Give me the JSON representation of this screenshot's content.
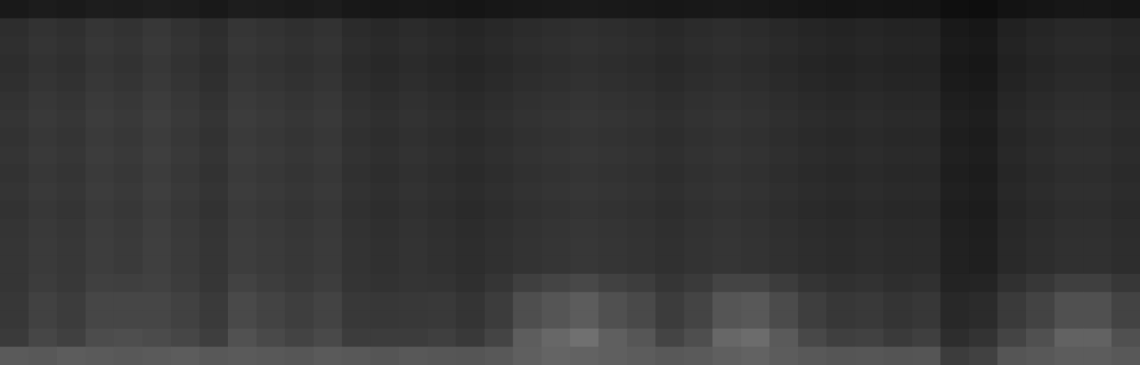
{
  "chart_data": {
    "type": "heatmap",
    "tick_labels": false,
    "grid": false,
    "value_range": [
      0,
      255
    ],
    "cells": [
      [
        25,
        28,
        26,
        29,
        28,
        30,
        28,
        25,
        29,
        28,
        26,
        28,
        24,
        23,
        24,
        23,
        21,
        23,
        24,
        25,
        26,
        25,
        24,
        23,
        24,
        25,
        24,
        23,
        21,
        20,
        21,
        20,
        20,
        15,
        14,
        19,
        21,
        23,
        23,
        21
      ],
      [
        45,
        50,
        47,
        53,
        50,
        55,
        50,
        45,
        53,
        50,
        47,
        50,
        43,
        40,
        43,
        40,
        37,
        40,
        43,
        45,
        47,
        45,
        43,
        40,
        43,
        45,
        43,
        40,
        37,
        35,
        37,
        35,
        35,
        25,
        23,
        33,
        37,
        40,
        40,
        37
      ],
      [
        47,
        52,
        49,
        55,
        52,
        57,
        52,
        47,
        55,
        52,
        49,
        52,
        45,
        42,
        45,
        42,
        39,
        42,
        45,
        47,
        49,
        47,
        45,
        42,
        45,
        47,
        45,
        42,
        39,
        37,
        39,
        37,
        37,
        27,
        25,
        35,
        39,
        42,
        42,
        39
      ],
      [
        45,
        50,
        47,
        53,
        50,
        55,
        50,
        45,
        53,
        50,
        47,
        50,
        43,
        40,
        43,
        40,
        37,
        40,
        43,
        45,
        47,
        45,
        43,
        40,
        43,
        45,
        43,
        40,
        37,
        35,
        37,
        35,
        35,
        25,
        23,
        33,
        37,
        40,
        40,
        37
      ],
      [
        47,
        52,
        49,
        55,
        52,
        57,
        52,
        47,
        55,
        52,
        49,
        52,
        45,
        42,
        45,
        42,
        39,
        42,
        45,
        47,
        49,
        47,
        45,
        42,
        45,
        47,
        45,
        42,
        39,
        37,
        39,
        37,
        37,
        27,
        25,
        35,
        39,
        42,
        42,
        39
      ],
      [
        50,
        55,
        52,
        58,
        55,
        60,
        55,
        50,
        58,
        55,
        52,
        55,
        48,
        45,
        48,
        45,
        42,
        45,
        48,
        50,
        52,
        50,
        48,
        45,
        48,
        50,
        48,
        45,
        42,
        40,
        42,
        40,
        40,
        30,
        28,
        38,
        42,
        45,
        45,
        42
      ],
      [
        52,
        57,
        54,
        60,
        57,
        62,
        57,
        52,
        60,
        57,
        54,
        57,
        50,
        47,
        50,
        47,
        44,
        47,
        50,
        52,
        54,
        52,
        50,
        47,
        50,
        52,
        50,
        47,
        44,
        42,
        44,
        42,
        42,
        32,
        30,
        40,
        44,
        47,
        47,
        44
      ],
      [
        50,
        55,
        52,
        58,
        55,
        60,
        55,
        50,
        58,
        55,
        52,
        55,
        48,
        45,
        48,
        45,
        42,
        45,
        48,
        50,
        52,
        50,
        48,
        45,
        48,
        50,
        48,
        45,
        42,
        40,
        42,
        40,
        40,
        30,
        28,
        38,
        42,
        45,
        45,
        42
      ],
      [
        52,
        57,
        54,
        60,
        57,
        62,
        57,
        52,
        60,
        57,
        54,
        57,
        50,
        47,
        50,
        47,
        44,
        47,
        50,
        52,
        54,
        52,
        50,
        47,
        50,
        52,
        50,
        47,
        44,
        42,
        44,
        42,
        42,
        32,
        30,
        40,
        44,
        47,
        47,
        44
      ],
      [
        50,
        55,
        52,
        58,
        55,
        60,
        55,
        50,
        58,
        55,
        52,
        55,
        48,
        45,
        48,
        45,
        42,
        45,
        48,
        50,
        52,
        50,
        48,
        45,
        48,
        50,
        48,
        45,
        42,
        40,
        42,
        40,
        40,
        30,
        28,
        38,
        42,
        45,
        45,
        42
      ],
      [
        52,
        57,
        54,
        60,
        57,
        62,
        57,
        52,
        60,
        57,
        54,
        57,
        50,
        47,
        50,
        47,
        44,
        47,
        50,
        52,
        54,
        52,
        50,
        47,
        50,
        52,
        50,
        47,
        44,
        42,
        44,
        42,
        42,
        32,
        30,
        40,
        44,
        47,
        47,
        44
      ],
      [
        50,
        55,
        52,
        58,
        55,
        60,
        55,
        50,
        58,
        55,
        52,
        55,
        48,
        45,
        48,
        45,
        42,
        45,
        48,
        50,
        52,
        50,
        48,
        45,
        48,
        50,
        48,
        45,
        42,
        40,
        42,
        40,
        40,
        30,
        28,
        38,
        42,
        45,
        45,
        42
      ],
      [
        52,
        57,
        54,
        60,
        57,
        62,
        57,
        52,
        60,
        57,
        54,
        57,
        50,
        47,
        50,
        47,
        44,
        47,
        50,
        52,
        54,
        52,
        50,
        47,
        50,
        52,
        50,
        47,
        44,
        42,
        44,
        42,
        42,
        32,
        30,
        40,
        44,
        47,
        47,
        44
      ],
      [
        53,
        58,
        55,
        61,
        58,
        63,
        58,
        53,
        61,
        58,
        55,
        58,
        51,
        48,
        51,
        48,
        45,
        48,
        51,
        53,
        55,
        53,
        51,
        48,
        51,
        53,
        51,
        48,
        45,
        43,
        45,
        43,
        43,
        33,
        31,
        41,
        45,
        48,
        48,
        45
      ],
      [
        53,
        58,
        55,
        61,
        58,
        63,
        58,
        53,
        61,
        58,
        55,
        58,
        51,
        48,
        51,
        48,
        45,
        48,
        51,
        53,
        55,
        53,
        51,
        48,
        51,
        53,
        51,
        48,
        45,
        43,
        45,
        43,
        43,
        33,
        31,
        41,
        45,
        48,
        48,
        45
      ],
      [
        53,
        60,
        56,
        64,
        63,
        65,
        60,
        54,
        66,
        61,
        57,
        61,
        52,
        50,
        52,
        51,
        47,
        53,
        63,
        68,
        72,
        65,
        61,
        53,
        58,
        68,
        68,
        60,
        52,
        48,
        50,
        46,
        48,
        35,
        36,
        48,
        55,
        63,
        63,
        55
      ],
      [
        55,
        65,
        60,
        70,
        70,
        70,
        65,
        58,
        73,
        67,
        62,
        67,
        56,
        55,
        56,
        57,
        52,
        60,
        78,
        85,
        92,
        80,
        73,
        60,
        68,
        85,
        88,
        75,
        62,
        55,
        57,
        52,
        55,
        40,
        43,
        58,
        67,
        80,
        80,
        67
      ],
      [
        55,
        65,
        60,
        70,
        70,
        70,
        65,
        58,
        73,
        67,
        62,
        67,
        56,
        55,
        56,
        57,
        52,
        60,
        78,
        85,
        92,
        80,
        73,
        60,
        68,
        85,
        88,
        75,
        62,
        55,
        57,
        52,
        55,
        40,
        43,
        58,
        67,
        80,
        80,
        67
      ],
      [
        58,
        70,
        64,
        76,
        78,
        75,
        70,
        62,
        81,
        73,
        67,
        73,
        60,
        60,
        60,
        63,
        57,
        68,
        93,
        103,
        112,
        95,
        86,
        68,
        78,
        103,
        108,
        90,
        72,
        63,
        65,
        58,
        63,
        45,
        51,
        68,
        80,
        98,
        98,
        80
      ],
      [
        90,
        88,
        92,
        90,
        88,
        90,
        92,
        88,
        90,
        88,
        86,
        90,
        88,
        85,
        88,
        86,
        85,
        88,
        95,
        100,
        98,
        95,
        92,
        88,
        90,
        95,
        98,
        92,
        88,
        85,
        86,
        84,
        85,
        60,
        65,
        85,
        88,
        92,
        92,
        88
      ]
    ]
  }
}
